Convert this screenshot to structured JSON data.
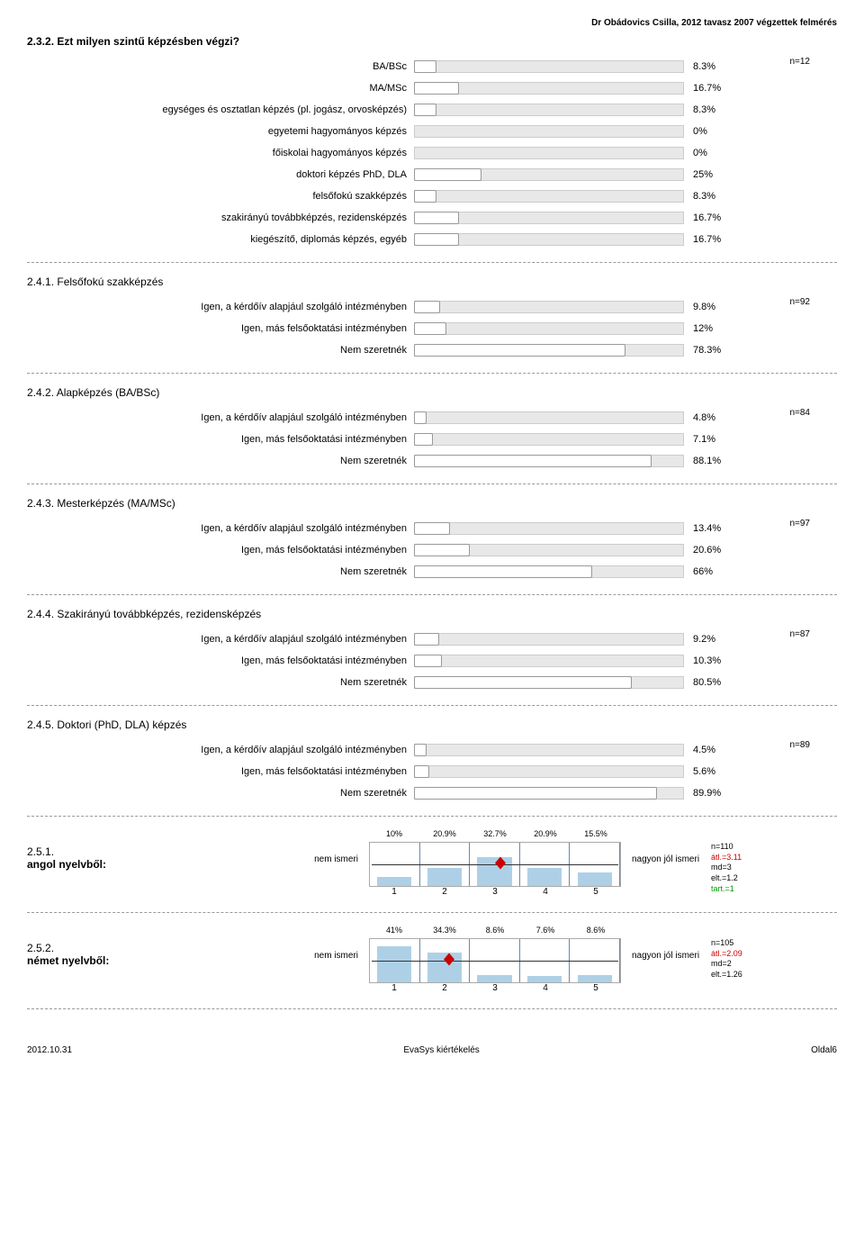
{
  "header": "Dr Obádovics Csilla, 2012 tavasz 2007 végzettek felmérés",
  "q232": {
    "title": "2.3.2. Ezt milyen szintű képzésben végzi?",
    "n": "n=12",
    "rows": [
      {
        "label": "BA/BSc",
        "pct": 8.3,
        "pct_label": "8.3%"
      },
      {
        "label": "MA/MSc",
        "pct": 16.7,
        "pct_label": "16.7%"
      },
      {
        "label": "egységes és osztatlan képzés (pl. jogász, orvosképzés)",
        "pct": 8.3,
        "pct_label": "8.3%"
      },
      {
        "label": "egyetemi hagyományos képzés",
        "pct": 0,
        "pct_label": "0%"
      },
      {
        "label": "főiskolai hagyományos képzés",
        "pct": 0,
        "pct_label": "0%"
      },
      {
        "label": "doktori képzés PhD, DLA",
        "pct": 25,
        "pct_label": "25%"
      },
      {
        "label": "felsőfokú szakképzés",
        "pct": 8.3,
        "pct_label": "8.3%"
      },
      {
        "label": "szakirányú továbbképzés, rezidensképzés",
        "pct": 16.7,
        "pct_label": "16.7%"
      },
      {
        "label": "kiegészítő, diplomás képzés, egyéb",
        "pct": 16.7,
        "pct_label": "16.7%"
      }
    ]
  },
  "q241": {
    "title": "2.4.1. Felsőfokú szakképzés",
    "n": "n=92",
    "rows": [
      {
        "label": "Igen, a kérdőív alapjául szolgáló intézményben",
        "pct": 9.8,
        "pct_label": "9.8%"
      },
      {
        "label": "Igen, más felsőoktatási intézményben",
        "pct": 12,
        "pct_label": "12%"
      },
      {
        "label": "Nem szeretnék",
        "pct": 78.3,
        "pct_label": "78.3%"
      }
    ]
  },
  "q242": {
    "title": "2.4.2. Alapképzés (BA/BSc)",
    "n": "n=84",
    "rows": [
      {
        "label": "Igen, a kérdőív alapjául szolgáló intézményben",
        "pct": 4.8,
        "pct_label": "4.8%"
      },
      {
        "label": "Igen, más felsőoktatási intézményben",
        "pct": 7.1,
        "pct_label": "7.1%"
      },
      {
        "label": "Nem szeretnék",
        "pct": 88.1,
        "pct_label": "88.1%"
      }
    ]
  },
  "q243": {
    "title": "2.4.3. Mesterképzés (MA/MSc)",
    "n": "n=97",
    "rows": [
      {
        "label": "Igen, a kérdőív alapjául szolgáló intézményben",
        "pct": 13.4,
        "pct_label": "13.4%"
      },
      {
        "label": "Igen, más felsőoktatási intézményben",
        "pct": 20.6,
        "pct_label": "20.6%"
      },
      {
        "label": "Nem szeretnék",
        "pct": 66,
        "pct_label": "66%"
      }
    ]
  },
  "q244": {
    "title": "2.4.4. Szakirányú továbbképzés, rezidensképzés",
    "n": "n=87",
    "rows": [
      {
        "label": "Igen, a kérdőív alapjául szolgáló intézményben",
        "pct": 9.2,
        "pct_label": "9.2%"
      },
      {
        "label": "Igen, más felsőoktatási intézményben",
        "pct": 10.3,
        "pct_label": "10.3%"
      },
      {
        "label": "Nem szeretnék",
        "pct": 80.5,
        "pct_label": "80.5%"
      }
    ]
  },
  "q245": {
    "title": "2.4.5. Doktori (PhD, DLA) képzés",
    "n": "n=89",
    "rows": [
      {
        "label": "Igen, a kérdőív alapjául szolgáló intézményben",
        "pct": 4.5,
        "pct_label": "4.5%"
      },
      {
        "label": "Igen, más felsőoktatási intézményben",
        "pct": 5.6,
        "pct_label": "5.6%"
      },
      {
        "label": "Nem szeretnék",
        "pct": 89.9,
        "pct_label": "89.9%"
      }
    ]
  },
  "q251": {
    "no": "2.5.1.",
    "title": "angol nyelvből:",
    "left": "nem ismeri",
    "right": "nagyon jól ismeri",
    "pcts": [
      "10%",
      "20.9%",
      "32.7%",
      "20.9%",
      "15.5%"
    ],
    "heights": [
      10,
      20.9,
      32.7,
      20.9,
      15.5
    ],
    "axis": [
      "1",
      "2",
      "3",
      "4",
      "5"
    ],
    "mean": 3.11,
    "stats": {
      "n": "n=110",
      "atl": "átl.=3.11",
      "md": "md=3",
      "elt": "elt.=1.2",
      "tart": "tart.=1"
    }
  },
  "q252": {
    "no": "2.5.2.",
    "title": "német nyelvből:",
    "left": "nem ismeri",
    "right": "nagyon jól ismeri",
    "pcts": [
      "41%",
      "34.3%",
      "8.6%",
      "7.6%",
      "8.6%"
    ],
    "heights": [
      41,
      34.3,
      8.6,
      7.6,
      8.6
    ],
    "axis": [
      "1",
      "2",
      "3",
      "4",
      "5"
    ],
    "mean": 2.09,
    "stats": {
      "n": "n=105",
      "atl": "átl.=2.09",
      "md": "md=2",
      "elt": "elt.=1.26"
    }
  },
  "footer": {
    "left": "2012.10.31",
    "center": "EvaSys kiértékelés",
    "right": "Oldal6"
  },
  "style": {
    "bar_track_width": 300,
    "likert_max_height": 40,
    "colors": {
      "bar_fill": "#aed0e6",
      "stat_atl": "#c00",
      "stat_tart": "#090"
    }
  }
}
